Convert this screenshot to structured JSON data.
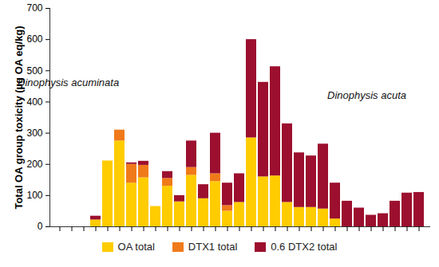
{
  "chart_data": {
    "type": "bar",
    "stacked": true,
    "ylabel": "Total OA group toxicity (µg OA eq/kg)",
    "categories": [
      null,
      null,
      null,
      null,
      null,
      null,
      null,
      null,
      null,
      null,
      null,
      null,
      null,
      null,
      null,
      null,
      null,
      null,
      null,
      null,
      null,
      null,
      null,
      null,
      null,
      null,
      null,
      null,
      null,
      null,
      null
    ],
    "series": [
      {
        "name": "OA total",
        "color": "#ffcc00",
        "values": [
          null,
          null,
          null,
          22,
          211,
          275,
          140,
          157,
          65,
          130,
          80,
          165,
          90,
          145,
          50,
          78,
          285,
          160,
          163,
          78,
          62,
          62,
          57,
          25,
          null,
          null,
          null,
          null,
          null,
          null,
          null
        ]
      },
      {
        "name": "DTX1 total",
        "color": "#f07a1a",
        "values": [
          null,
          null,
          null,
          null,
          null,
          35,
          60,
          40,
          null,
          25,
          null,
          25,
          null,
          25,
          18,
          null,
          null,
          null,
          null,
          null,
          null,
          null,
          null,
          null,
          null,
          null,
          null,
          null,
          null,
          null,
          null
        ]
      },
      {
        "name": "0.6 DTX2 total",
        "color": "#9c0f2e",
        "values": [
          null,
          null,
          null,
          12,
          null,
          null,
          5,
          13,
          null,
          22,
          20,
          85,
          45,
          130,
          72,
          92,
          315,
          303,
          350,
          252,
          175,
          165,
          208,
          115,
          82,
          60,
          37,
          42,
          82,
          108,
          110
        ]
      }
    ],
    "ylim": [
      0,
      700
    ],
    "yticks": [
      0,
      100,
      200,
      300,
      400,
      500,
      600,
      700
    ],
    "tick_labels": "y",
    "legend": "bottom",
    "annotations": [
      "Dinophysis acuminata",
      "Dinophysis acuta"
    ]
  }
}
